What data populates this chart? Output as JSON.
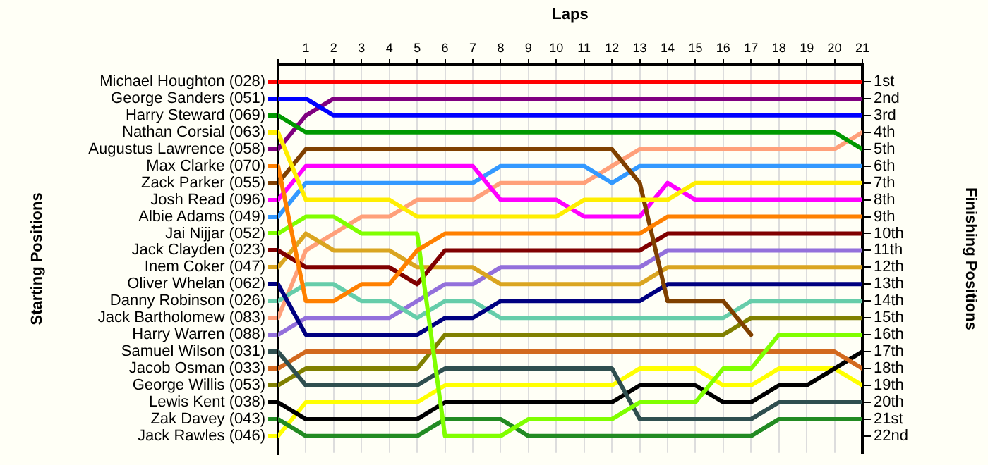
{
  "chart_data": {
    "type": "line",
    "xlabel": "Laps",
    "ylabel": "Finishing Positions",
    "legend_title": "Starting Positions",
    "x": [
      0,
      1,
      2,
      3,
      4,
      5,
      6,
      7,
      8,
      9,
      10,
      11,
      12,
      13,
      14,
      15,
      16,
      17,
      18,
      19,
      20,
      21
    ],
    "xlim": [
      0,
      21
    ],
    "xticks": [
      {
        "value": 0,
        "label": null
      },
      1,
      2,
      3,
      4,
      5,
      6,
      7,
      8,
      9,
      10,
      11,
      12,
      13,
      14,
      15,
      16,
      17,
      18,
      19,
      20,
      21
    ],
    "ylim": [
      23,
      0
    ],
    "yticks": [
      {
        "value": 1,
        "label": "1st"
      },
      {
        "value": 2,
        "label": "2nd"
      },
      {
        "value": 3,
        "label": "3rd"
      },
      {
        "value": 4,
        "label": "4th"
      },
      {
        "value": 5,
        "label": "5th"
      },
      {
        "value": 6,
        "label": "6th"
      },
      {
        "value": 7,
        "label": "7th"
      },
      {
        "value": 8,
        "label": "8th"
      },
      {
        "value": 9,
        "label": "9th"
      },
      {
        "value": 10,
        "label": "10th"
      },
      {
        "value": 11,
        "label": "11th"
      },
      {
        "value": 12,
        "label": "12th"
      },
      {
        "value": 13,
        "label": "13th"
      },
      {
        "value": 14,
        "label": "14th"
      },
      {
        "value": 15,
        "label": "15th"
      },
      {
        "value": 16,
        "label": "16th"
      },
      {
        "value": 17,
        "label": "17th"
      },
      {
        "value": 18,
        "label": "18th"
      },
      {
        "value": 19,
        "label": "19th"
      },
      {
        "value": 20,
        "label": "20th"
      },
      {
        "value": 21,
        "label": "21st"
      },
      {
        "value": 22,
        "label": "22nd"
      }
    ],
    "grid": "x",
    "legend": "left",
    "marker": "none",
    "line_style": "solid",
    "series": [
      {
        "name": "Michael Houghton (028)",
        "color": "#ff0000",
        "values": [
          1,
          1,
          1,
          1,
          1,
          1,
          1,
          1,
          1,
          1,
          1,
          1,
          1,
          1,
          1,
          1,
          1,
          1,
          1,
          1,
          1,
          1
        ]
      },
      {
        "name": "George Sanders (051)",
        "color": "#0000ff",
        "values": [
          2,
          2,
          3,
          3,
          3,
          3,
          3,
          3,
          3,
          3,
          3,
          3,
          3,
          3,
          3,
          3,
          3,
          3,
          3,
          3,
          3,
          3
        ]
      },
      {
        "name": "Harry Steward (069)",
        "color": "#009900",
        "values": [
          3,
          4,
          4,
          4,
          4,
          4,
          4,
          4,
          4,
          4,
          4,
          4,
          4,
          4,
          4,
          4,
          4,
          4,
          4,
          4,
          4,
          5
        ]
      },
      {
        "name": "Nathan Corsial (063)",
        "color": "#ffee00",
        "values": [
          4,
          8,
          8,
          8,
          8,
          9,
          9,
          9,
          9,
          9,
          9,
          8,
          8,
          8,
          8,
          7,
          7,
          7,
          7,
          7,
          7,
          7
        ]
      },
      {
        "name": "Augustus Lawrence (058)",
        "color": "#800080",
        "values": [
          5,
          3,
          2,
          2,
          2,
          2,
          2,
          2,
          2,
          2,
          2,
          2,
          2,
          2,
          2,
          2,
          2,
          2,
          2,
          2,
          2,
          2
        ]
      },
      {
        "name": "Max Clarke (070)",
        "color": "#ff8000",
        "values": [
          6,
          14,
          14,
          13,
          13,
          11,
          10,
          10,
          10,
          10,
          10,
          10,
          10,
          10,
          9,
          9,
          9,
          9,
          9,
          9,
          9,
          9
        ]
      },
      {
        "name": "Zack Parker (055)",
        "color": "#804000",
        "values": [
          7,
          5,
          5,
          5,
          5,
          5,
          5,
          5,
          5,
          5,
          5,
          5,
          5,
          7,
          14,
          14,
          14,
          16,
          null,
          null,
          null,
          null
        ]
      },
      {
        "name": "Josh Read (096)",
        "color": "#ff00ff",
        "values": [
          8,
          6,
          6,
          6,
          6,
          6,
          6,
          6,
          8,
          8,
          8,
          9,
          9,
          9,
          7,
          8,
          8,
          8,
          8,
          8,
          8,
          8
        ]
      },
      {
        "name": "Albie Adams (049)",
        "color": "#3399ff",
        "values": [
          9,
          7,
          7,
          7,
          7,
          7,
          7,
          7,
          6,
          6,
          6,
          6,
          7,
          6,
          6,
          6,
          6,
          6,
          6,
          6,
          6,
          6
        ]
      },
      {
        "name": "Jai Nijjar (052)",
        "color": "#80ff00",
        "values": [
          10,
          9,
          9,
          10,
          10,
          10,
          22,
          22,
          22,
          21,
          21,
          21,
          21,
          20,
          20,
          20,
          18,
          18,
          16,
          16,
          16,
          16
        ]
      },
      {
        "name": "Jack Clayden (023)",
        "color": "#800000",
        "values": [
          11,
          12,
          12,
          12,
          12,
          13,
          11,
          11,
          11,
          11,
          11,
          11,
          11,
          11,
          10,
          10,
          10,
          10,
          10,
          10,
          10,
          10
        ]
      },
      {
        "name": "Inem Coker (047)",
        "color": "#daa520",
        "values": [
          12,
          10,
          11,
          11,
          11,
          12,
          12,
          12,
          13,
          13,
          13,
          13,
          13,
          13,
          12,
          12,
          12,
          12,
          12,
          12,
          12,
          12
        ]
      },
      {
        "name": "Oliver Whelan (062)",
        "color": "#000080",
        "values": [
          13,
          16,
          16,
          16,
          16,
          16,
          15,
          15,
          14,
          14,
          14,
          14,
          14,
          14,
          13,
          13,
          13,
          13,
          13,
          13,
          13,
          13
        ]
      },
      {
        "name": "Danny Robinson (026)",
        "color": "#66cdaa",
        "values": [
          14,
          13,
          13,
          14,
          14,
          15,
          14,
          14,
          15,
          15,
          15,
          15,
          15,
          15,
          15,
          15,
          15,
          14,
          14,
          14,
          14,
          14
        ]
      },
      {
        "name": "Jack Bartholomew (083)",
        "color": "#ffa07a",
        "values": [
          15,
          11,
          10,
          9,
          9,
          8,
          8,
          8,
          7,
          7,
          7,
          7,
          6,
          5,
          5,
          5,
          5,
          5,
          5,
          5,
          5,
          4
        ]
      },
      {
        "name": "Harry Warren (088)",
        "color": "#9370db",
        "values": [
          16,
          15,
          15,
          15,
          15,
          14,
          13,
          13,
          12,
          12,
          12,
          12,
          12,
          12,
          11,
          11,
          11,
          11,
          11,
          11,
          11,
          11
        ]
      },
      {
        "name": "Samuel Wilson (031)",
        "color": "#2f4f4f",
        "values": [
          17,
          19,
          19,
          19,
          19,
          19,
          18,
          18,
          18,
          18,
          18,
          18,
          18,
          21,
          21,
          21,
          21,
          21,
          20,
          20,
          20,
          20
        ]
      },
      {
        "name": "Jacob Osman (033)",
        "color": "#d2691e",
        "values": [
          18,
          17,
          17,
          17,
          17,
          17,
          17,
          17,
          17,
          17,
          17,
          17,
          17,
          17,
          17,
          17,
          17,
          17,
          17,
          17,
          17,
          18
        ]
      },
      {
        "name": "George Willis (053)",
        "color": "#808000",
        "values": [
          19,
          18,
          18,
          18,
          18,
          18,
          16,
          16,
          16,
          16,
          16,
          16,
          16,
          16,
          16,
          16,
          16,
          15,
          15,
          15,
          15,
          15
        ]
      },
      {
        "name": "Lewis Kent (038)",
        "color": "#000000",
        "values": [
          20,
          21,
          21,
          21,
          21,
          21,
          20,
          20,
          20,
          20,
          20,
          20,
          20,
          19,
          19,
          19,
          20,
          20,
          19,
          19,
          18,
          17
        ]
      },
      {
        "name": "Zak Davey (043)",
        "color": "#228b22",
        "values": [
          21,
          22,
          22,
          22,
          22,
          22,
          21,
          21,
          21,
          22,
          22,
          22,
          22,
          22,
          22,
          22,
          22,
          22,
          21,
          21,
          21,
          21
        ]
      },
      {
        "name": "Jack Rawles (046)",
        "color": "#ffff00",
        "values": [
          22,
          20,
          20,
          20,
          20,
          20,
          19,
          19,
          19,
          19,
          19,
          19,
          19,
          18,
          18,
          18,
          19,
          19,
          18,
          18,
          18,
          19
        ]
      }
    ]
  }
}
